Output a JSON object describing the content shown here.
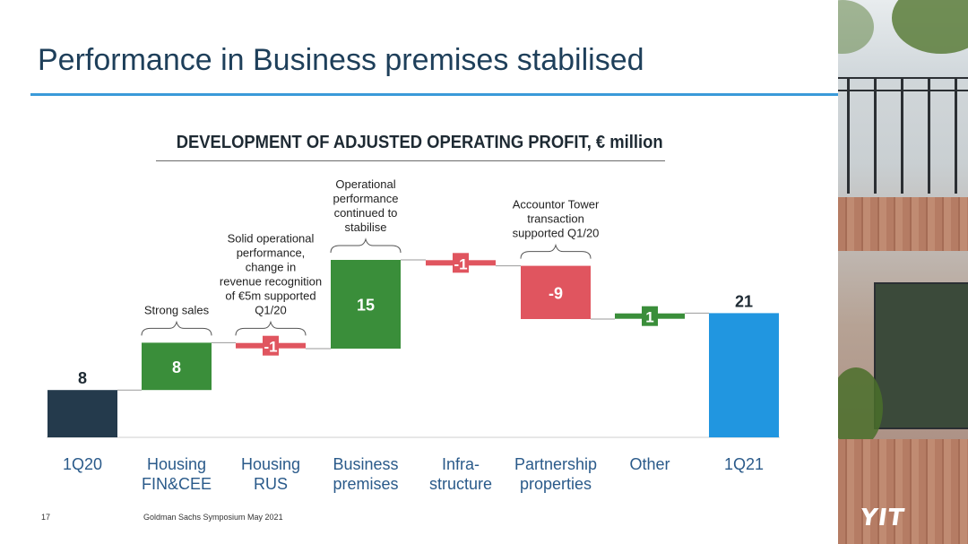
{
  "slide": {
    "title": "Performance in Business premises stabilised",
    "page_number": "17",
    "footer": "Goldman Sachs Symposium May 2021",
    "logo_text": "YIT"
  },
  "chart_data": {
    "type": "bar",
    "subtype": "waterfall",
    "title": "DEVELOPMENT OF ADJUSTED OPERATING PROFIT, € million",
    "categories": [
      "1Q20",
      "Housing FIN&CEE",
      "Housing RUS",
      "Business premises",
      "Infra-structure",
      "Partnership properties",
      "Other",
      "1Q21"
    ],
    "category_lines": [
      [
        "1Q20"
      ],
      [
        "Housing",
        "FIN&CEE"
      ],
      [
        "Housing",
        "RUS"
      ],
      [
        "Business",
        "premises"
      ],
      [
        "Infra-",
        "structure"
      ],
      [
        "Partnership",
        "properties"
      ],
      [
        "Other"
      ],
      [
        "1Q21"
      ]
    ],
    "values": [
      8,
      8,
      -1,
      15,
      -1,
      -9,
      1,
      21
    ],
    "value_labels": [
      "8",
      "8",
      "-1",
      "15",
      "-1",
      "-9",
      "1",
      "21"
    ],
    "kinds": [
      "total",
      "delta",
      "delta",
      "delta",
      "delta",
      "delta",
      "delta",
      "total"
    ],
    "ylim": [
      0,
      32
    ],
    "colors": {
      "start_total": "#243a4c",
      "end_total": "#2196e0",
      "increase": "#3a8e3a",
      "decrease": "#e0555f",
      "connector": "#9a9a9a"
    },
    "annotations": [
      {
        "category": "Housing FIN&CEE",
        "lines": [
          "Strong sales"
        ]
      },
      {
        "category": "Housing RUS",
        "lines": [
          "Solid operational",
          "performance,",
          "change in",
          "revenue recognition",
          "of €5m supported",
          "Q1/20"
        ]
      },
      {
        "category": "Business premises",
        "lines": [
          "Operational",
          "performance",
          "continued to",
          "stabilise"
        ]
      },
      {
        "category": "Partnership properties",
        "lines": [
          "Accountor Tower",
          "transaction",
          "supported Q1/20"
        ]
      }
    ]
  }
}
